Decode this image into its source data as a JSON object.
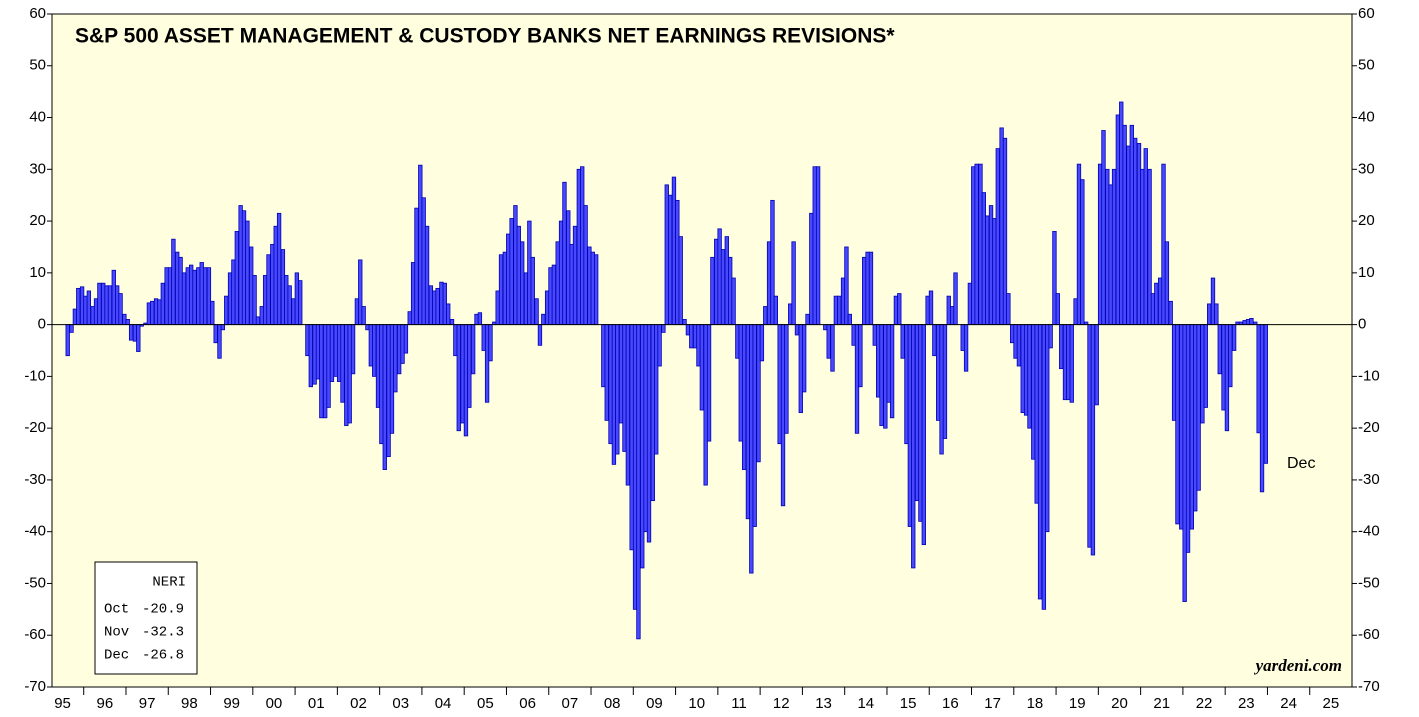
{
  "chart_data": {
    "type": "bar",
    "title": "S&P 500 ASSET MANAGEMENT & CUSTODY BANKS NET EARNINGS REVISIONS*",
    "source": "yardeni.com",
    "annotation": "Dec",
    "box": {
      "title": "NERI",
      "months": [
        "Oct",
        "Nov",
        "Dec"
      ]
    },
    "color": "#4848ff",
    "edge_color": "#0000b0",
    "background": "#ffffe0",
    "xlim": [
      1995.25,
      2026
    ],
    "xticks": [
      {
        "value": 1995,
        "label": "95"
      },
      {
        "value": 1996,
        "label": "96"
      },
      {
        "value": 1997,
        "label": "97"
      },
      {
        "value": 1998,
        "label": "98"
      },
      {
        "value": 1999,
        "label": "99"
      },
      {
        "value": 2000,
        "label": "00"
      },
      {
        "value": 2001,
        "label": "01"
      },
      {
        "value": 2002,
        "label": "02"
      },
      {
        "value": 2003,
        "label": "03"
      },
      {
        "value": 2004,
        "label": "04"
      },
      {
        "value": 2005,
        "label": "05"
      },
      {
        "value": 2006,
        "label": "06"
      },
      {
        "value": 2007,
        "label": "07"
      },
      {
        "value": 2008,
        "label": "08"
      },
      {
        "value": 2009,
        "label": "09"
      },
      {
        "value": 2010,
        "label": "10"
      },
      {
        "value": 2011,
        "label": "11"
      },
      {
        "value": 2012,
        "label": "12"
      },
      {
        "value": 2013,
        "label": "13"
      },
      {
        "value": 2014,
        "label": "14"
      },
      {
        "value": 2015,
        "label": "15"
      },
      {
        "value": 2016,
        "label": "16"
      },
      {
        "value": 2017,
        "label": "17"
      },
      {
        "value": 2018,
        "label": "18"
      },
      {
        "value": 2019,
        "label": "19"
      },
      {
        "value": 2020,
        "label": "20"
      },
      {
        "value": 2021,
        "label": "21"
      },
      {
        "value": 2022,
        "label": "22"
      },
      {
        "value": 2023,
        "label": "23"
      },
      {
        "value": 2024,
        "label": "24"
      },
      {
        "value": 2025,
        "label": "25"
      }
    ],
    "ylim": [
      -70,
      60
    ],
    "yticks": [
      -70,
      -60,
      -50,
      -40,
      -30,
      -20,
      -10,
      0,
      10,
      20,
      30,
      40,
      50,
      60
    ],
    "x": [
      1995.58,
      1995.67,
      1995.75,
      1995.83,
      1995.92,
      1996,
      1996.08,
      1996.17,
      1996.25,
      1996.33,
      1996.42,
      1996.5,
      1996.58,
      1996.67,
      1996.75,
      1996.83,
      1996.92,
      1997,
      1997.08,
      1997.17,
      1997.25,
      1997.33,
      1997.42,
      1997.5,
      1997.58,
      1997.67,
      1997.75,
      1997.83,
      1997.92,
      1998,
      1998.08,
      1998.17,
      1998.25,
      1998.33,
      1998.42,
      1998.5,
      1998.58,
      1998.67,
      1998.75,
      1998.83,
      1998.92,
      1999,
      1999.08,
      1999.17,
      1999.25,
      1999.33,
      1999.42,
      1999.5,
      1999.58,
      1999.67,
      1999.75,
      1999.83,
      1999.92,
      2000,
      2000.08,
      2000.17,
      2000.25,
      2000.33,
      2000.42,
      2000.5,
      2000.58,
      2000.67,
      2000.75,
      2000.83,
      2000.92,
      2001,
      2001.08,
      2001.17,
      2001.25,
      2001.33,
      2001.42,
      2001.5,
      2001.58,
      2001.67,
      2001.75,
      2001.83,
      2001.92,
      2002,
      2002.08,
      2002.17,
      2002.25,
      2002.33,
      2002.42,
      2002.5,
      2002.58,
      2002.67,
      2002.75,
      2002.83,
      2002.92,
      2003,
      2003.08,
      2003.17,
      2003.25,
      2003.33,
      2003.42,
      2003.5,
      2003.58,
      2003.67,
      2003.75,
      2003.83,
      2003.92,
      2004,
      2004.08,
      2004.17,
      2004.25,
      2004.33,
      2004.42,
      2004.5,
      2004.58,
      2004.67,
      2004.75,
      2004.83,
      2004.92,
      2005,
      2005.08,
      2005.17,
      2005.25,
      2005.33,
      2005.42,
      2005.5,
      2005.58,
      2005.67,
      2005.75,
      2005.83,
      2005.92,
      2006,
      2006.08,
      2006.17,
      2006.25,
      2006.33,
      2006.42,
      2006.5,
      2006.58,
      2006.67,
      2006.75,
      2006.83,
      2006.92,
      2007,
      2007.08,
      2007.17,
      2007.25,
      2007.33,
      2007.42,
      2007.5,
      2007.58,
      2007.67,
      2007.75,
      2007.83,
      2007.92,
      2008,
      2008.08,
      2008.17,
      2008.25,
      2008.33,
      2008.42,
      2008.5,
      2008.58,
      2008.67,
      2008.75,
      2008.83,
      2008.92,
      2009,
      2009.08,
      2009.17,
      2009.25,
      2009.33,
      2009.42,
      2009.5,
      2009.58,
      2009.67,
      2009.75,
      2009.83,
      2009.92,
      2010,
      2010.08,
      2010.17,
      2010.25,
      2010.33,
      2010.42,
      2010.5,
      2010.58,
      2010.67,
      2010.75,
      2010.83,
      2010.92,
      2011,
      2011.08,
      2011.17,
      2011.25,
      2011.33,
      2011.42,
      2011.5,
      2011.58,
      2011.67,
      2011.75,
      2011.83,
      2011.92,
      2012,
      2012.08,
      2012.17,
      2012.25,
      2012.33,
      2012.42,
      2012.5,
      2012.58,
      2012.67,
      2012.75,
      2012.83,
      2012.92,
      2013,
      2013.08,
      2013.17,
      2013.25,
      2013.33,
      2013.42,
      2013.5,
      2013.58,
      2013.67,
      2013.75,
      2013.83,
      2013.92,
      2014,
      2014.08,
      2014.17,
      2014.25,
      2014.33,
      2014.42,
      2014.5,
      2014.58,
      2014.67,
      2014.75,
      2014.83,
      2014.92,
      2015,
      2015.08,
      2015.17,
      2015.25,
      2015.33,
      2015.42,
      2015.5,
      2015.58,
      2015.67,
      2015.75,
      2015.83,
      2015.92,
      2016,
      2016.08,
      2016.17,
      2016.25,
      2016.33,
      2016.42,
      2016.5,
      2016.58,
      2016.67,
      2016.75,
      2016.83,
      2016.92,
      2017,
      2017.08,
      2017.17,
      2017.25,
      2017.33,
      2017.42,
      2017.5,
      2017.58,
      2017.67,
      2017.75,
      2017.83,
      2017.92,
      2018,
      2018.08,
      2018.17,
      2018.25,
      2018.33,
      2018.42,
      2018.5,
      2018.58,
      2018.67,
      2018.75,
      2018.83,
      2018.92,
      2019,
      2019.08,
      2019.17,
      2019.25,
      2019.33,
      2019.42,
      2019.5,
      2019.58,
      2019.67,
      2019.75,
      2019.83,
      2019.92,
      2020,
      2020.08,
      2020.17,
      2020.25,
      2020.33,
      2020.42,
      2020.5,
      2020.58,
      2020.67,
      2020.75,
      2020.83,
      2020.92,
      2021,
      2021.08,
      2021.17,
      2021.25,
      2021.33,
      2021.42,
      2021.5,
      2021.58,
      2021.67,
      2021.75,
      2021.83,
      2021.92,
      2022,
      2022.08,
      2022.17,
      2022.25,
      2022.33,
      2022.42,
      2022.5,
      2022.58,
      2022.67,
      2022.75,
      2022.83,
      2022.92,
      2023,
      2023.08,
      2023.17,
      2023.25,
      2023.33,
      2023.42,
      2023.5,
      2023.58,
      2023.67,
      2023.75,
      2023.83,
      2023.92
    ],
    "values": [
      -6,
      -1.5,
      3,
      7,
      7.3,
      5.5,
      6.5,
      3.5,
      5,
      8,
      8,
      7.5,
      7.5,
      10.5,
      7.5,
      6,
      2,
      1,
      -3,
      -3.2,
      -5.2,
      -0.3,
      0.3,
      4.2,
      4.5,
      5,
      4.8,
      8,
      11,
      11,
      16.5,
      14,
      13,
      10,
      11,
      11.5,
      10.5,
      11,
      12,
      11,
      11,
      4.5,
      -3.5,
      -6.5,
      -1,
      5.5,
      10,
      12.5,
      18,
      23,
      22,
      20,
      15,
      9.5,
      1.5,
      3.5,
      9.5,
      13.5,
      15.5,
      19,
      21.5,
      14.5,
      9.5,
      7.5,
      5,
      10,
      8.5,
      0,
      -6,
      -12,
      -11.5,
      -10.5,
      -18,
      -18,
      -16,
      -11,
      -10,
      -11,
      -15,
      -19.5,
      -19,
      -9.5,
      5,
      12.5,
      3.5,
      -1,
      -8,
      -10,
      -16,
      -23,
      -28,
      -25.5,
      -21,
      -13,
      -9.5,
      -7.5,
      -5.5,
      2.5,
      12,
      22.5,
      30.8,
      24.5,
      19,
      7.5,
      6.5,
      7,
      8.2,
      8,
      4,
      1,
      -6,
      -20.5,
      -19,
      -21.5,
      -16,
      -9.5,
      2,
      2.3,
      -5,
      -15,
      -7,
      0.5,
      6.5,
      13.5,
      14,
      17.5,
      20.5,
      23,
      19,
      16,
      10,
      20,
      13,
      5,
      -4,
      2,
      6.5,
      11,
      11.5,
      16,
      20,
      27.5,
      22,
      15.5,
      19,
      30,
      30.5,
      23,
      15,
      14,
      13.5,
      0,
      -12,
      -18.5,
      -23,
      -27,
      -25,
      -19,
      -24.5,
      -31,
      -43.5,
      -55,
      -60.7,
      -47,
      -40,
      -42,
      -34,
      -25,
      -8,
      -1.5,
      27,
      25,
      28.5,
      24,
      17,
      1,
      -2,
      -4.5,
      -4.5,
      -8,
      -16.5,
      -31,
      -22.5,
      13,
      16.5,
      18.5,
      14.5,
      17,
      13,
      9,
      -6.5,
      -22.5,
      -28,
      -37.5,
      -48,
      -39,
      -26.5,
      -7,
      3.5,
      16,
      24,
      5.5,
      -23,
      -35,
      -21,
      4,
      16,
      -2,
      -17,
      -13,
      2,
      21.5,
      30.5,
      30.5,
      0,
      -1,
      -6.5,
      -9,
      5.5,
      5.5,
      9,
      15,
      2,
      -4,
      -21,
      -12,
      13,
      14,
      14,
      -4,
      -14,
      -19.5,
      -20,
      -15,
      -18,
      5.5,
      6,
      -6.5,
      -23,
      -39,
      -47,
      -34,
      -38,
      -42.5,
      5.5,
      6.5,
      -6,
      -18.5,
      -25,
      -22,
      5.5,
      3.5,
      10,
      0,
      -5,
      -9,
      8,
      30.5,
      31,
      31,
      25.5,
      21,
      23,
      20.5,
      34,
      38,
      36,
      6,
      -3.5,
      -6.5,
      -8,
      -17,
      -17.5,
      -20,
      -26,
      -34.5,
      -53,
      -55,
      -40,
      -4.5,
      18,
      6,
      -8.5,
      -14.5,
      -14.5,
      -15,
      5,
      31,
      28,
      0.5,
      -43,
      -44.5,
      -15.5,
      31,
      37.5,
      30,
      27,
      30,
      40.5,
      43,
      38.5,
      34.5,
      38.5,
      36,
      35,
      30,
      34,
      30,
      6,
      8,
      9,
      31,
      16,
      4.5,
      -18.5,
      -38.5,
      -39.5,
      -53.5,
      -44,
      -39.5,
      -36,
      -32,
      -19,
      -16,
      4,
      9,
      4,
      -9.5,
      -16.5,
      -20.5,
      -12,
      -5,
      0.5,
      0.5,
      0.8,
      1,
      1.2,
      0.5,
      -20.9,
      -32.3,
      -26.8
    ]
  }
}
